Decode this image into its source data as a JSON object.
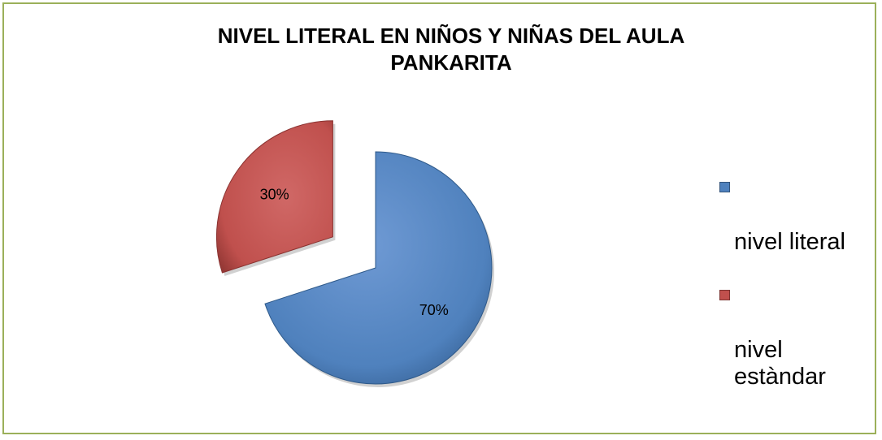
{
  "chart_data": {
    "type": "pie",
    "title": "NIVEL LITERAL EN NIÑOS  Y NIÑAS DEL  AULA\nPANKARITA",
    "slices": [
      {
        "name": "nivel literal",
        "value": 70,
        "label": "70%",
        "color": "#4f81bd",
        "exploded": false
      },
      {
        "name": "nivel\nestàndar",
        "value": 30,
        "label": "30%",
        "color": "#c0504d",
        "exploded": true
      }
    ],
    "legend": {
      "placement": "right",
      "items": [
        {
          "label": "nivel literal",
          "color": "#4f81bd"
        },
        {
          "label": "nivel\nestàndar",
          "color": "#c0504d"
        }
      ]
    }
  }
}
